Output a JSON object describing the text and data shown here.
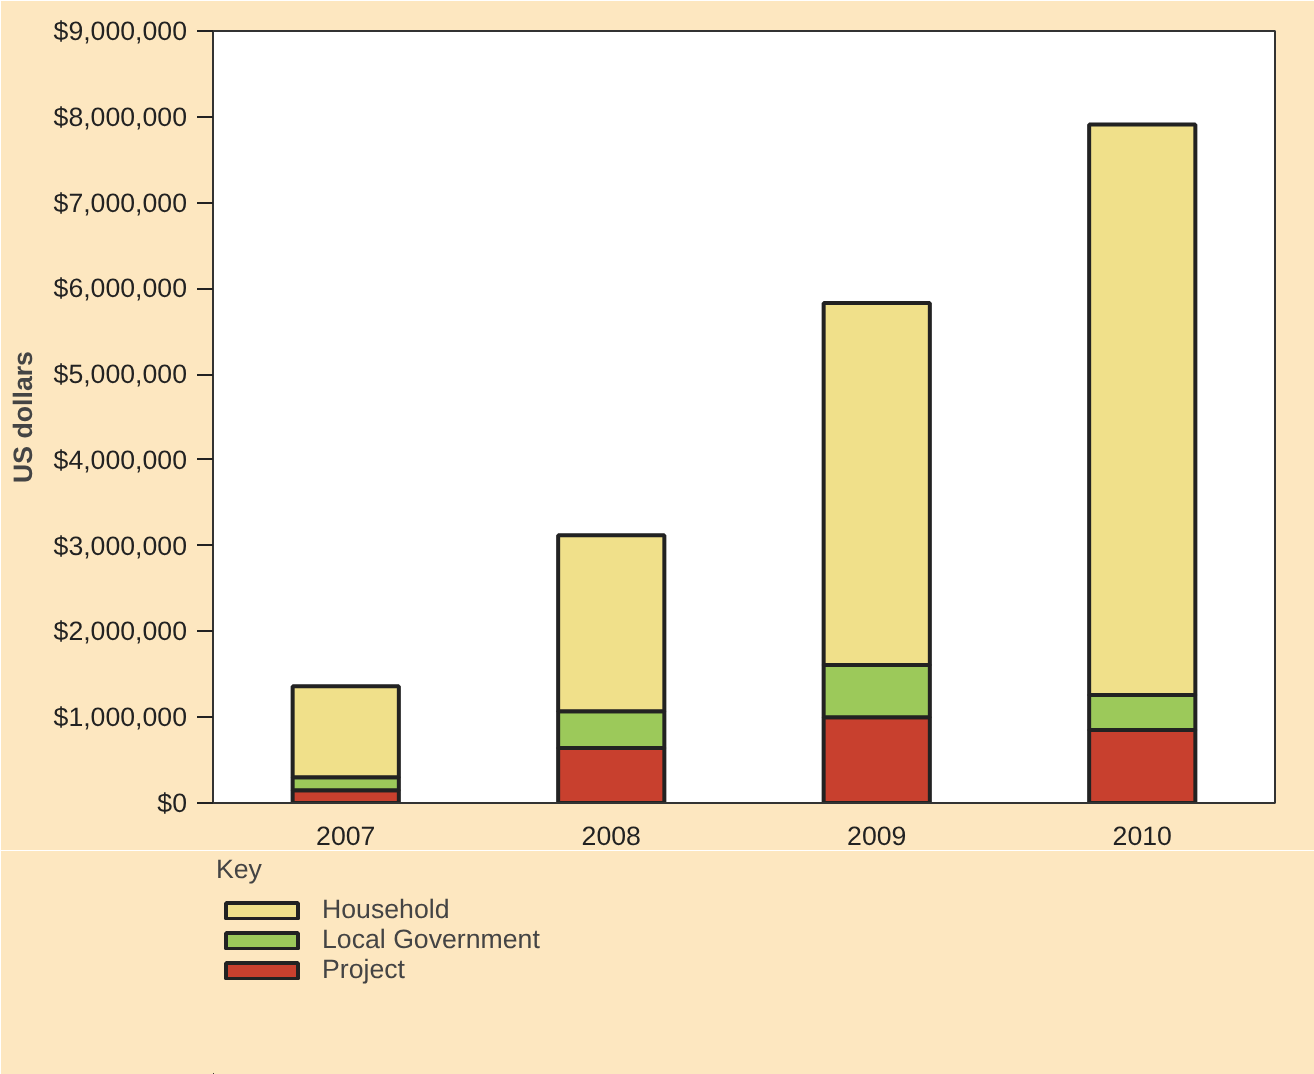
{
  "chart_data": {
    "type": "bar",
    "stacked": true,
    "ylabel": "US dollars",
    "legend_title": "Key",
    "legend": "bottom",
    "categories": [
      "2007",
      "2008",
      "2009",
      "2010"
    ],
    "series": [
      {
        "name": "Project",
        "color": "#c8402e",
        "values": [
          150000,
          640000,
          1000000,
          850000
        ]
      },
      {
        "name": "Local Government",
        "color": "#9cc95a",
        "values": [
          150000,
          430000,
          610000,
          410000
        ]
      },
      {
        "name": "Household",
        "color": "#f0e08a",
        "values": [
          1060000,
          2050000,
          4220000,
          6650000
        ]
      }
    ],
    "ylim": [
      0,
      9000000
    ],
    "yticks": [
      {
        "value": 0,
        "label": "$0"
      },
      {
        "value": 1000000,
        "label": "$1,000,000"
      },
      {
        "value": 2000000,
        "label": "$2,000,000"
      },
      {
        "value": 3000000,
        "label": "$3,000,000"
      },
      {
        "value": 4000000,
        "label": "$4,000,000"
      },
      {
        "value": 5000000,
        "label": "$5,000,000"
      },
      {
        "value": 6000000,
        "label": "$6,000,000"
      },
      {
        "value": 7000000,
        "label": "$7,000,000"
      },
      {
        "value": 8000000,
        "label": "$8,000,000"
      },
      {
        "value": 9000000,
        "label": "$9,000,000"
      }
    ],
    "grid": false
  }
}
